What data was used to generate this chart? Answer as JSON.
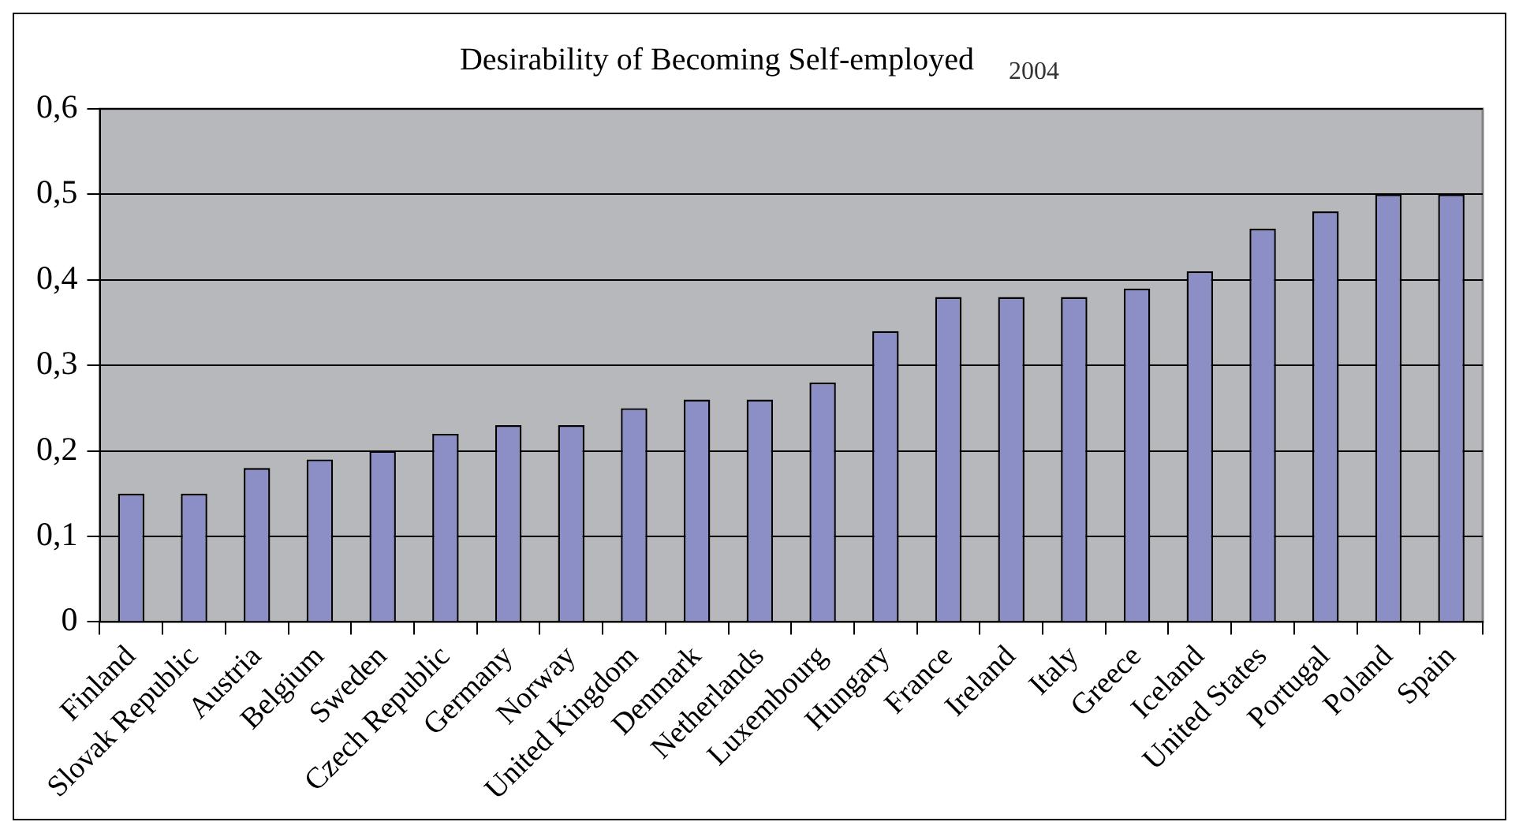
{
  "chart_data": {
    "type": "bar",
    "title": "Desirability of Becoming Self-employed",
    "subtitle": "2004",
    "categories": [
      "Finland",
      "Slovak Republic",
      "Austria",
      "Belgium",
      "Sweden",
      "Czech Republic",
      "Germany",
      "Norway",
      "United Kingdom",
      "Denmark",
      "Netherlands",
      "Luxembourg",
      "Hungary",
      "France",
      "Ireland",
      "Italy",
      "Greece",
      "Iceland",
      "United States",
      "Portugal",
      "Poland",
      "Spain"
    ],
    "values": [
      0.15,
      0.15,
      0.18,
      0.19,
      0.2,
      0.22,
      0.23,
      0.23,
      0.25,
      0.26,
      0.26,
      0.28,
      0.34,
      0.38,
      0.38,
      0.38,
      0.39,
      0.41,
      0.46,
      0.48,
      0.5,
      0.5
    ],
    "color": "#8b8fc6",
    "ylim": [
      0,
      0.6
    ],
    "yticks": [
      {
        "value": 0,
        "label": "0"
      },
      {
        "value": 0.1,
        "label": "0,1"
      },
      {
        "value": 0.2,
        "label": "0,2"
      },
      {
        "value": 0.3,
        "label": "0,3"
      },
      {
        "value": 0.4,
        "label": "0,4"
      },
      {
        "value": 0.5,
        "label": "0,5"
      },
      {
        "value": 0.6,
        "label": "0,6"
      }
    ],
    "grid": "y",
    "legend": false
  }
}
